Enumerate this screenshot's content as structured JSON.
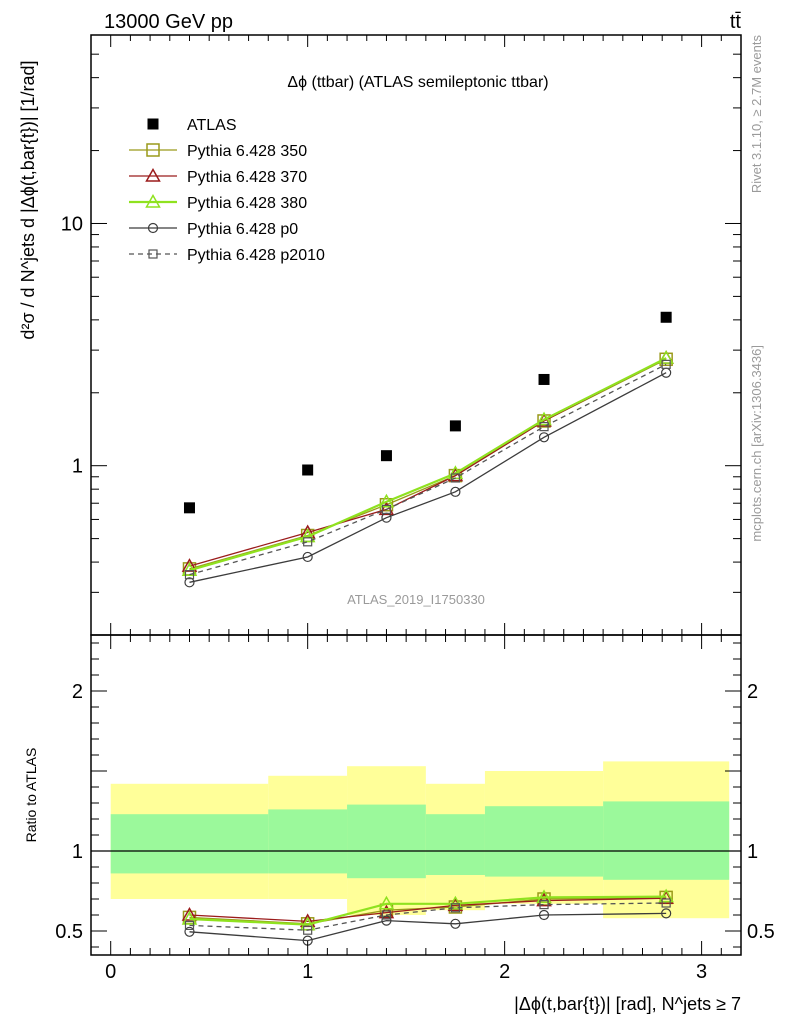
{
  "header": {
    "left": "13000 GeV pp",
    "right": "tt̄"
  },
  "side_text": {
    "rivet": "Rivet 3.1.10, ≥ 2.7M events",
    "url": "mcplots.cern.ch [arXiv:1306.3436]"
  },
  "watermark": "ATLAS_2019_I1750330",
  "chart_data": [
    {
      "type": "scatter",
      "title": "Δϕ (ttbar) (ATLAS semileptonic ttbar)",
      "ylabel": "d²σ / d N^jets d |Δϕ(t,bar{t})| [1/rad]",
      "yscale": "log",
      "xlim": [
        -0.1,
        3.2
      ],
      "ylim": [
        0.2,
        60
      ],
      "y_ticks": [
        1,
        10
      ],
      "y_tick_labels": [
        "1",
        "10"
      ],
      "x": [
        0.4,
        1.0,
        1.4,
        1.75,
        2.2,
        2.82
      ],
      "series": [
        {
          "name": "ATLAS",
          "marker": "square-filled",
          "color": "#000000",
          "dash": "none",
          "values": [
            0.67,
            0.96,
            1.1,
            1.46,
            2.27,
            4.1
          ]
        },
        {
          "name": "Pythia 6.428 350",
          "marker": "square-open",
          "color": "#9a9a1a",
          "dash": "solid",
          "values": [
            0.375,
            0.515,
            0.69,
            0.91,
            1.53,
            2.75
          ]
        },
        {
          "name": "Pythia 6.428 370",
          "marker": "triangle-open",
          "color": "#9b1c1c",
          "dash": "solid",
          "values": [
            0.385,
            0.53,
            0.66,
            0.91,
            1.53,
            2.78
          ]
        },
        {
          "name": "Pythia 6.428 380",
          "marker": "triangle-open",
          "color": "#8fe21f",
          "dash": "solid",
          "values": [
            0.37,
            0.51,
            0.71,
            0.93,
            1.55,
            2.78
          ]
        },
        {
          "name": "Pythia 6.428 p0",
          "marker": "circle-open",
          "color": "#3c3c3c",
          "dash": "solid",
          "values": [
            0.33,
            0.42,
            0.61,
            0.78,
            1.31,
            2.42
          ]
        },
        {
          "name": "Pythia 6.428 p2010",
          "marker": "square-open-small",
          "color": "#555555",
          "dash": "dashed",
          "values": [
            0.355,
            0.485,
            0.66,
            0.89,
            1.45,
            2.62
          ]
        }
      ]
    },
    {
      "type": "line",
      "ylabel": "Ratio to ATLAS",
      "xlabel": "|Δϕ(t,bar{t})| [rad], N^jets ≥ 7",
      "xlim": [
        -0.1,
        3.2
      ],
      "ylim": [
        0.35,
        2.35
      ],
      "x_ticks": [
        0,
        1,
        2,
        3
      ],
      "x_tick_labels": [
        "0",
        "1",
        "2",
        "3"
      ],
      "y_ticks": [
        0.5,
        1,
        2
      ],
      "y_tick_labels": [
        "0.5",
        "1",
        "2"
      ],
      "bins": [
        [
          0.0,
          0.8
        ],
        [
          0.8,
          1.2
        ],
        [
          1.2,
          1.6
        ],
        [
          1.6,
          1.9
        ],
        [
          1.9,
          2.5
        ],
        [
          2.5,
          3.14
        ]
      ],
      "band_inner": {
        "color": "#9bf99b",
        "low": [
          0.86,
          0.86,
          0.83,
          0.85,
          0.84,
          0.82
        ],
        "high": [
          1.23,
          1.26,
          1.29,
          1.23,
          1.28,
          1.31
        ]
      },
      "band_outer": {
        "color": "#ffff99",
        "low": [
          0.7,
          0.7,
          0.6,
          0.63,
          0.67,
          0.58
        ],
        "high": [
          1.42,
          1.47,
          1.53,
          1.42,
          1.5,
          1.56
        ]
      },
      "reference": 1,
      "x": [
        0.4,
        1.0,
        1.4,
        1.75,
        2.2,
        2.82
      ],
      "series": [
        {
          "name": "Pythia 6.428 350",
          "values": [
            0.585,
            0.545,
            0.63,
            0.65,
            0.7,
            0.71
          ]
        },
        {
          "name": "Pythia 6.428 370",
          "values": [
            0.6,
            0.56,
            0.615,
            0.66,
            0.69,
            0.705
          ]
        },
        {
          "name": "Pythia 6.428 380",
          "values": [
            0.575,
            0.54,
            0.67,
            0.67,
            0.71,
            0.715
          ]
        },
        {
          "name": "Pythia 6.428 p0",
          "values": [
            0.495,
            0.44,
            0.565,
            0.545,
            0.6,
            0.61
          ]
        },
        {
          "name": "Pythia 6.428 p2010",
          "values": [
            0.535,
            0.505,
            0.6,
            0.645,
            0.665,
            0.675
          ]
        }
      ]
    }
  ]
}
